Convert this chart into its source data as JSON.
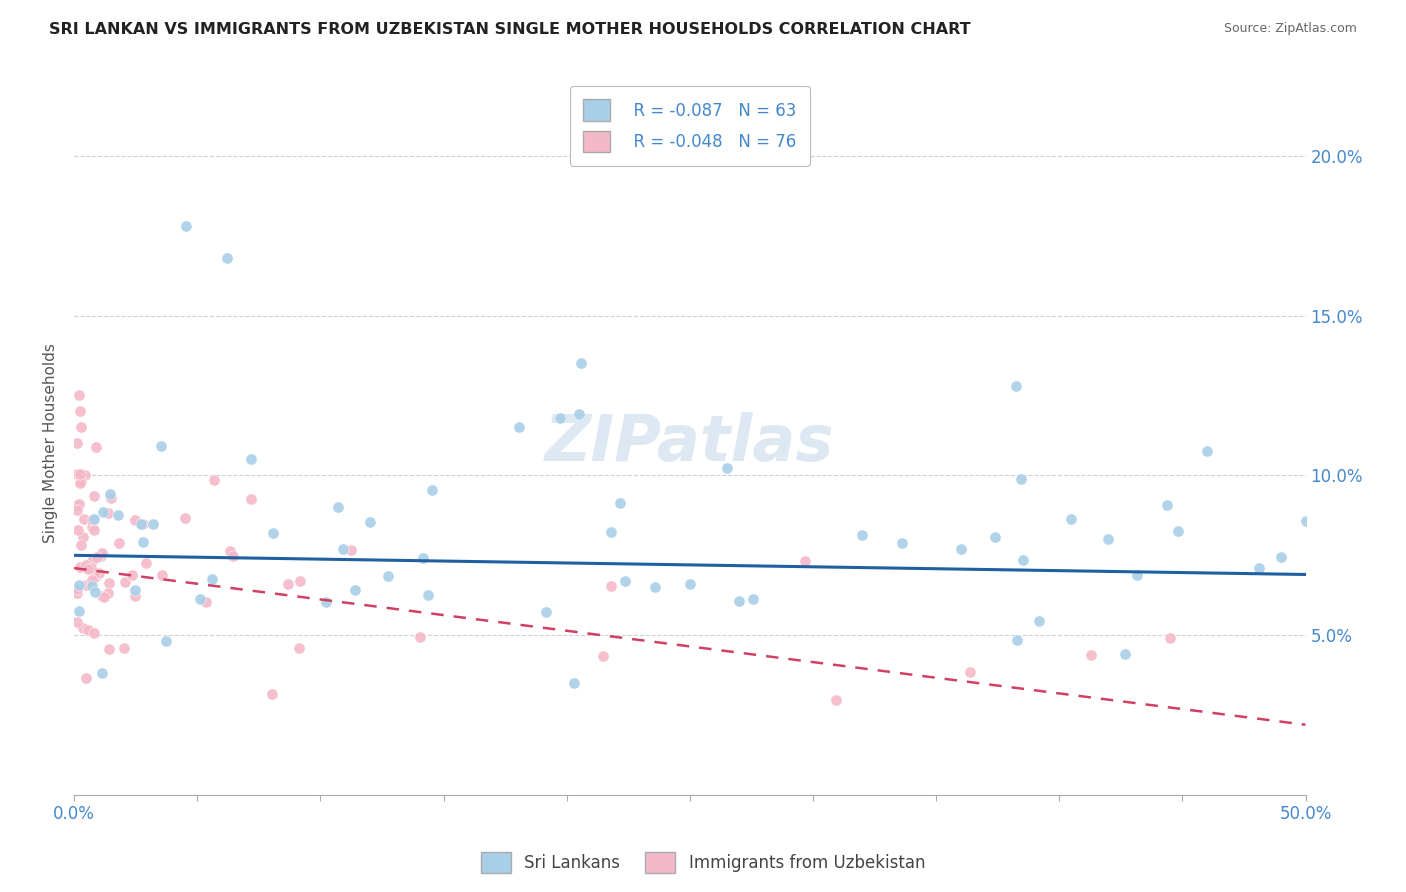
{
  "title": "SRI LANKAN VS IMMIGRANTS FROM UZBEKISTAN SINGLE MOTHER HOUSEHOLDS CORRELATION CHART",
  "source": "Source: ZipAtlas.com",
  "ylabel": "Single Mother Households",
  "legend_label1": "Sri Lankans",
  "legend_label2": "Immigrants from Uzbekistan",
  "r1": "-0.087",
  "n1": "63",
  "r2": "-0.048",
  "n2": "76",
  "color1": "#a8cfe8",
  "color2": "#f4b8c8",
  "trendline1_color": "#2060a0",
  "trendline2_color": "#d04060",
  "watermark_color": "#dde8f2",
  "grid_color": "#d0d0d0",
  "axis_label_color": "#4488cc",
  "title_color": "#222222",
  "source_color": "#666666",
  "bg_color": "#ffffff",
  "xlim": [
    0.0,
    0.5
  ],
  "ylim": [
    0.0,
    0.22
  ],
  "yticks": [
    0.0,
    0.05,
    0.1,
    0.15,
    0.2
  ],
  "ytick_labels": [
    "",
    "5.0%",
    "10.0%",
    "15.0%",
    "20.0%"
  ],
  "xticks": [
    0.0,
    0.05,
    0.1,
    0.15,
    0.2,
    0.25,
    0.3,
    0.35,
    0.4,
    0.45,
    0.5
  ]
}
